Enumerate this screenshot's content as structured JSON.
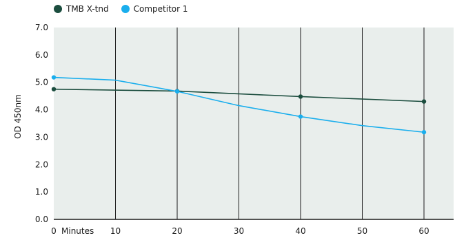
{
  "chart_data": {
    "type": "line",
    "x": [
      0,
      10,
      20,
      30,
      40,
      50,
      60
    ],
    "x_tick_labels": [
      "0",
      "10",
      "20",
      "30",
      "40",
      "50",
      "60"
    ],
    "x_unit_label": "Minutes",
    "ylabel": "OD 450nm",
    "ylim": [
      0,
      7
    ],
    "y_ticks": [
      "0.0",
      "1.0",
      "2.0",
      "3.0",
      "4.0",
      "5.0",
      "6.0",
      "7.0"
    ],
    "grid": "vertical",
    "legend_position": "top-left",
    "series": [
      {
        "name": "TMB X-tnd",
        "color": "#1b4d3e",
        "x": [
          0,
          20,
          40,
          60
        ],
        "values": [
          4.75,
          4.68,
          4.48,
          4.3
        ]
      },
      {
        "name": "Competitor 1",
        "color": "#1aaeed",
        "x": [
          0,
          10,
          20,
          30,
          40,
          50,
          60
        ],
        "values": [
          5.18,
          5.08,
          4.67,
          4.15,
          3.75,
          3.42,
          3.18
        ],
        "marker_x": [
          0,
          20,
          40,
          60
        ]
      }
    ]
  },
  "style": {
    "plot_bg": "#e9eeec",
    "grid_color": "#1b1b1b"
  }
}
